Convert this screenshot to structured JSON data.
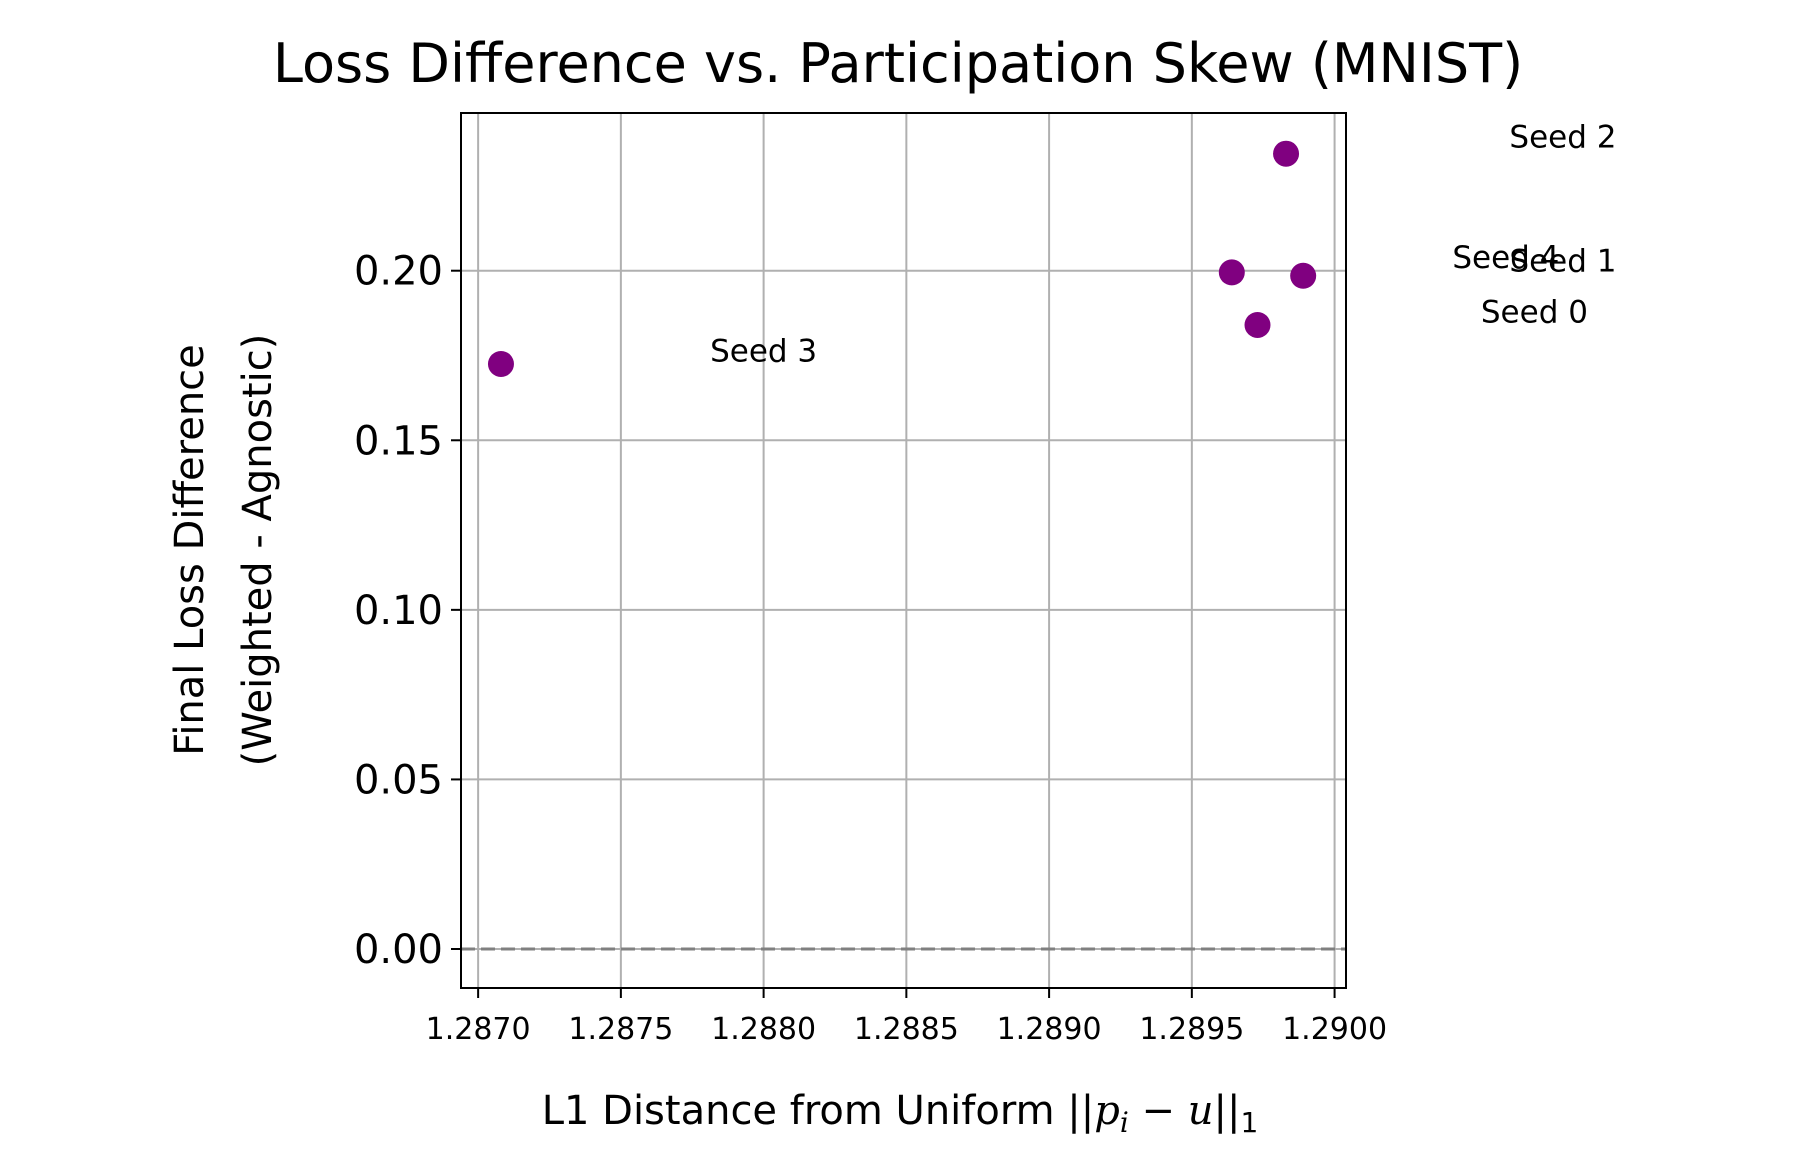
{
  "chart_data": {
    "type": "scatter",
    "title": "Loss Difference vs. Participation Skew (MNIST)",
    "xlabel": "L1 Distance from Uniform ||p_i − u||₁",
    "xlabel_parts": {
      "prefix": "L1 Distance from Uniform ",
      "p": "p",
      "i": "i",
      "minus": " − ",
      "u": "u",
      "sub": "1"
    },
    "ylabel_lines": [
      "Final Loss Difference",
      "(Weighted - Agnostic)"
    ],
    "xlim": [
      1.28694,
      1.29004
    ],
    "ylim": [
      -0.0115,
      0.2465
    ],
    "x_ticks": [
      1.287,
      1.2875,
      1.288,
      1.2885,
      1.289,
      1.2895,
      1.29
    ],
    "x_tick_labels": [
      "1.2870",
      "1.2875",
      "1.2880",
      "1.2885",
      "1.2890",
      "1.2895",
      "1.2900"
    ],
    "y_ticks": [
      0.0,
      0.05,
      0.1,
      0.15,
      0.2
    ],
    "y_tick_labels": [
      "0.00",
      "0.05",
      "0.10",
      "0.15",
      "0.20"
    ],
    "grid": true,
    "reference_line": {
      "y": 0.0,
      "style": "dashed",
      "color": "#808080"
    },
    "marker_color": "#800080",
    "points": [
      {
        "label": "Seed 0",
        "x": 1.28973,
        "y": 0.184,
        "label_x": 1.2907,
        "label_y": 0.188
      },
      {
        "label": "Seed 1",
        "x": 1.28989,
        "y": 0.1985,
        "label_x": 1.2908,
        "label_y": 0.203
      },
      {
        "label": "Seed 2",
        "x": 1.28983,
        "y": 0.2345,
        "label_x": 1.2908,
        "label_y": 0.2395
      },
      {
        "label": "Seed 3",
        "x": 1.28708,
        "y": 0.1725,
        "label_x": 1.288,
        "label_y": 0.1765
      },
      {
        "label": "Seed 4",
        "x": 1.28964,
        "y": 0.1995,
        "label_x": 1.2906,
        "label_y": 0.204
      }
    ]
  }
}
